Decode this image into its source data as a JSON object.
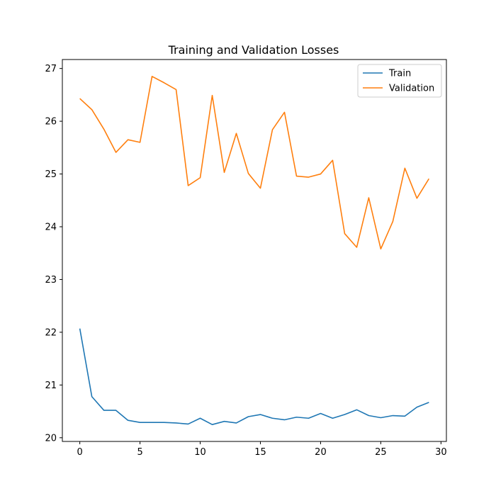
{
  "chart_data": {
    "type": "line",
    "title": "Training and Validation Losses",
    "xlabel": "",
    "ylabel": "",
    "xlim": [
      -1.45,
      30.45
    ],
    "ylim": [
      19.93,
      27.17
    ],
    "xticks": [
      0,
      5,
      10,
      15,
      20,
      25,
      30
    ],
    "yticks": [
      20,
      21,
      22,
      23,
      24,
      25,
      26,
      27
    ],
    "grid": false,
    "legend_position": "top-right",
    "x": [
      0,
      1,
      2,
      3,
      4,
      5,
      6,
      7,
      8,
      9,
      10,
      11,
      12,
      13,
      14,
      15,
      16,
      17,
      18,
      19,
      20,
      21,
      22,
      23,
      24,
      25,
      26,
      27,
      28,
      29
    ],
    "series": [
      {
        "name": "Train",
        "color": "#1f77b4",
        "values": [
          22.07,
          20.78,
          20.52,
          20.52,
          20.33,
          20.29,
          20.29,
          20.29,
          20.28,
          20.26,
          20.37,
          20.25,
          20.31,
          20.28,
          20.4,
          20.44,
          20.37,
          20.34,
          20.39,
          20.37,
          20.46,
          20.37,
          20.44,
          20.53,
          20.42,
          20.38,
          20.42,
          20.41,
          20.58,
          20.67
        ]
      },
      {
        "name": "Validation",
        "color": "#ff7f0e",
        "values": [
          26.43,
          26.22,
          25.85,
          25.41,
          25.65,
          25.6,
          26.85,
          26.73,
          26.6,
          24.78,
          24.93,
          26.49,
          25.03,
          25.77,
          25.01,
          24.73,
          25.84,
          26.17,
          24.96,
          24.94,
          25.0,
          25.26,
          23.87,
          23.61,
          24.55,
          23.58,
          24.1,
          25.11,
          24.54,
          24.91
        ]
      }
    ]
  }
}
